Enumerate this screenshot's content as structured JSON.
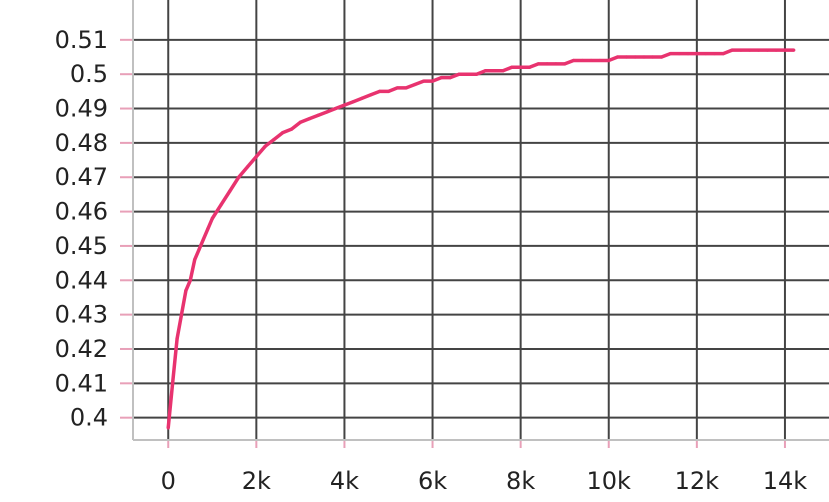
{
  "chart_data": {
    "type": "line",
    "title": "",
    "xlabel": "",
    "ylabel": "",
    "xlim": [
      -800,
      15000
    ],
    "ylim": [
      0.3935,
      0.5216
    ],
    "x_ticks": [
      0,
      2000,
      4000,
      6000,
      8000,
      10000,
      12000,
      14000
    ],
    "x_tick_labels": [
      "0",
      "2k",
      "4k",
      "6k",
      "8k",
      "10k",
      "12k",
      "14k"
    ],
    "y_ticks": [
      0.4,
      0.41,
      0.42,
      0.43,
      0.44,
      0.45,
      0.46,
      0.47,
      0.48,
      0.49,
      0.5,
      0.51
    ],
    "y_tick_labels": [
      "0.4",
      "0.41",
      "0.42",
      "0.43",
      "0.44",
      "0.45",
      "0.46",
      "0.47",
      "0.48",
      "0.49",
      "0.5",
      "0.51"
    ],
    "grid": true,
    "legend": "none",
    "series": [
      {
        "color": "#e8336f",
        "x": [
          0,
          100,
          200,
          300,
          400,
          500,
          600,
          700,
          800,
          900,
          1000,
          1200,
          1400,
          1600,
          1800,
          2000,
          2200,
          2400,
          2600,
          2800,
          3000,
          3200,
          3400,
          3600,
          3800,
          4000,
          4200,
          4400,
          4600,
          4800,
          5000,
          5200,
          5400,
          5600,
          5800,
          6000,
          6200,
          6400,
          6600,
          6800,
          7000,
          7200,
          7400,
          7600,
          7800,
          8000,
          8200,
          8400,
          8600,
          8800,
          9000,
          9200,
          9400,
          9600,
          9800,
          10000,
          10200,
          10400,
          10600,
          10800,
          11000,
          11200,
          11400,
          11600,
          11800,
          12000,
          12200,
          12400,
          12600,
          12800,
          13000,
          13200,
          13400,
          13600,
          13800,
          14000,
          14200
        ],
        "values": [
          0.397,
          0.41,
          0.423,
          0.43,
          0.437,
          0.44,
          0.446,
          0.449,
          0.452,
          0.455,
          0.458,
          0.462,
          0.466,
          0.47,
          0.473,
          0.476,
          0.479,
          0.481,
          0.483,
          0.484,
          0.486,
          0.487,
          0.488,
          0.489,
          0.49,
          0.491,
          0.492,
          0.493,
          0.494,
          0.495,
          0.495,
          0.496,
          0.496,
          0.497,
          0.498,
          0.498,
          0.499,
          0.499,
          0.5,
          0.5,
          0.5,
          0.501,
          0.501,
          0.501,
          0.502,
          0.502,
          0.502,
          0.503,
          0.503,
          0.503,
          0.503,
          0.504,
          0.504,
          0.504,
          0.504,
          0.504,
          0.505,
          0.505,
          0.505,
          0.505,
          0.505,
          0.505,
          0.506,
          0.506,
          0.506,
          0.506,
          0.506,
          0.506,
          0.506,
          0.507,
          0.507,
          0.507,
          0.507,
          0.507,
          0.507,
          0.507,
          0.507
        ]
      }
    ]
  }
}
